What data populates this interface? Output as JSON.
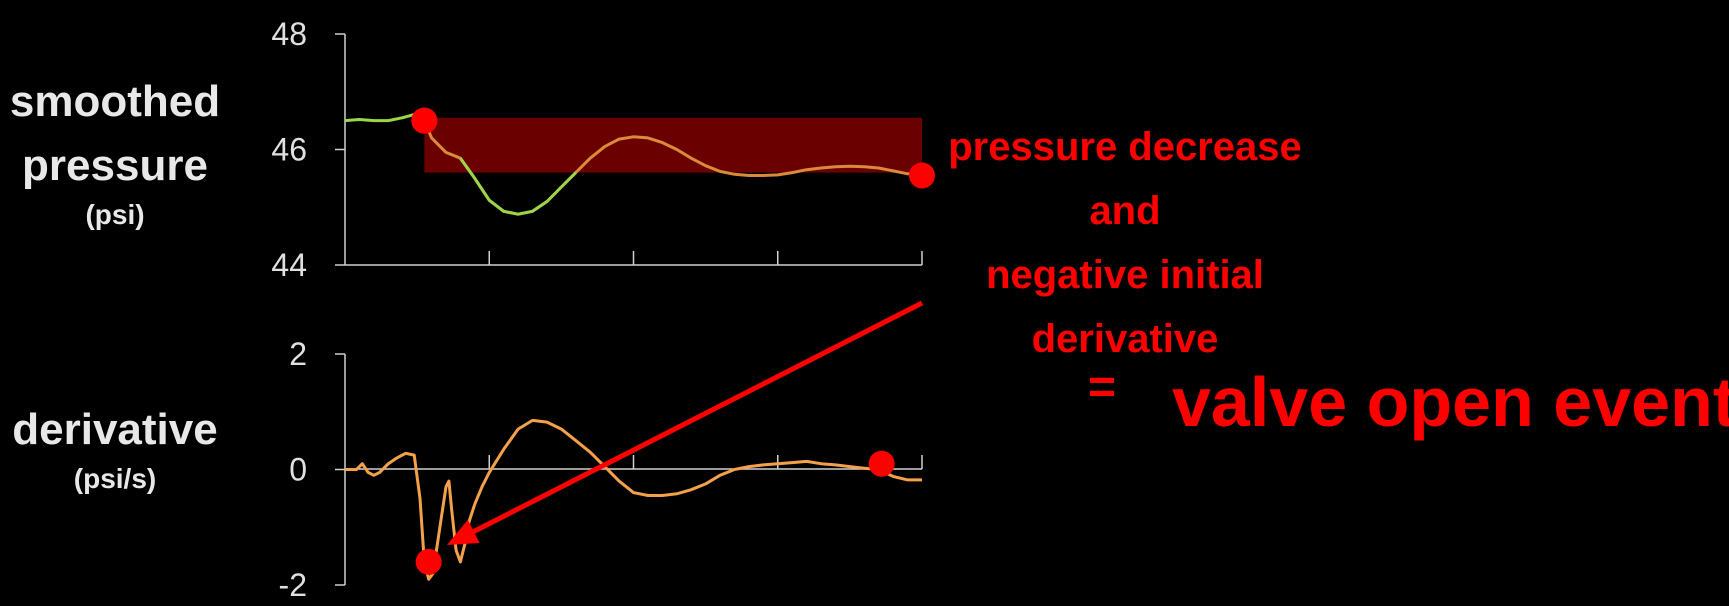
{
  "labels": {
    "pressure_main_1": "smoothed",
    "pressure_main_2": "pressure",
    "pressure_unit": "(psi)",
    "derivative_main": "derivative",
    "derivative_unit": "(psi/s)"
  },
  "annotation": {
    "line1": "pressure decrease",
    "line2": "and",
    "line3": "negative initial",
    "line4": "derivative",
    "equals": "=",
    "event": "valve open event"
  },
  "colors": {
    "background": "#000000",
    "axis": "#cfcfcf",
    "pressure_pre": "#9bd64a",
    "pressure_post": "#d98a3a",
    "derivative": "#f4a14a",
    "marker": "#ff0000",
    "highlight_band": "#6b0000",
    "arrow": "#ff0000"
  },
  "chart_data": [
    {
      "type": "line",
      "title": "",
      "ylabel": "smoothed pressure (psi)",
      "ylim": [
        44,
        48
      ],
      "yticks": [
        "48",
        "46",
        "44"
      ],
      "x_ticks_count": 4,
      "xlim": [
        0,
        40
      ],
      "highlight_band": {
        "x_start": 5.5,
        "x_end": 40,
        "y_low": 45.6,
        "y_high": 46.55
      },
      "markers": [
        {
          "x": 5.5,
          "y": 46.5
        },
        {
          "x": 40,
          "y": 45.55
        }
      ],
      "series": [
        {
          "values_x": [
            0,
            1,
            2,
            3,
            4,
            5,
            5.5
          ],
          "values_y": [
            46.5,
            46.52,
            46.5,
            46.5,
            46.55,
            46.62,
            46.5
          ]
        },
        {
          "values_x": [
            5.5,
            6,
            7,
            8,
            9,
            10,
            11,
            12,
            13,
            14,
            15,
            16,
            17,
            18,
            19,
            20,
            21,
            22,
            23,
            24,
            25,
            26,
            27,
            28,
            29,
            30,
            31,
            32,
            33,
            34,
            35,
            36,
            37,
            38,
            39,
            40
          ],
          "values_y": [
            46.5,
            46.2,
            45.95,
            45.85,
            45.5,
            45.12,
            44.93,
            44.88,
            44.93,
            45.1,
            45.35,
            45.6,
            45.85,
            46.05,
            46.18,
            46.22,
            46.2,
            46.12,
            46.0,
            45.85,
            45.72,
            45.62,
            45.57,
            45.55,
            45.55,
            45.56,
            45.6,
            45.65,
            45.68,
            45.7,
            45.71,
            45.7,
            45.68,
            45.63,
            45.58,
            45.55
          ]
        }
      ]
    },
    {
      "type": "line",
      "title": "",
      "ylabel": "derivative (psi/s)",
      "ylim": [
        -2,
        2
      ],
      "yticks": [
        "2",
        "0",
        "-2"
      ],
      "x_ticks_count": 4,
      "xlim": [
        0,
        40
      ],
      "markers": [
        {
          "x": 5.8,
          "y": -1.6
        },
        {
          "x": 37.2,
          "y": 0.1
        }
      ],
      "series": [
        {
          "values_x": [
            0,
            0.8,
            1.2,
            1.6,
            2.0,
            2.4,
            3.0,
            3.6,
            4.2,
            4.8,
            5.2,
            5.5,
            5.8,
            6.1,
            6.4,
            6.7,
            7.0,
            7.2,
            7.4,
            7.7,
            8.0,
            8.3,
            8.6,
            9.0,
            9.5,
            10,
            11,
            12,
            13,
            14,
            15,
            16,
            17,
            18,
            19,
            20,
            21,
            22,
            23,
            24,
            25,
            26,
            27,
            28,
            29,
            30,
            31,
            32,
            33,
            34,
            35,
            36,
            37,
            38,
            39,
            40
          ],
          "values_y": [
            0,
            0,
            0.1,
            -0.05,
            -0.1,
            -0.05,
            0.1,
            0.2,
            0.28,
            0.25,
            -0.5,
            -1.6,
            -1.9,
            -1.8,
            -1.3,
            -0.8,
            -0.3,
            -0.2,
            -0.7,
            -1.4,
            -1.6,
            -1.3,
            -0.9,
            -0.6,
            -0.3,
            -0.05,
            0.35,
            0.7,
            0.85,
            0.82,
            0.7,
            0.5,
            0.3,
            0.05,
            -0.2,
            -0.4,
            -0.45,
            -0.45,
            -0.42,
            -0.35,
            -0.25,
            -0.1,
            0.0,
            0.05,
            0.08,
            0.1,
            0.12,
            0.14,
            0.1,
            0.08,
            0.05,
            0.02,
            0.0,
            -0.12,
            -0.18,
            -0.18
          ]
        }
      ]
    }
  ]
}
